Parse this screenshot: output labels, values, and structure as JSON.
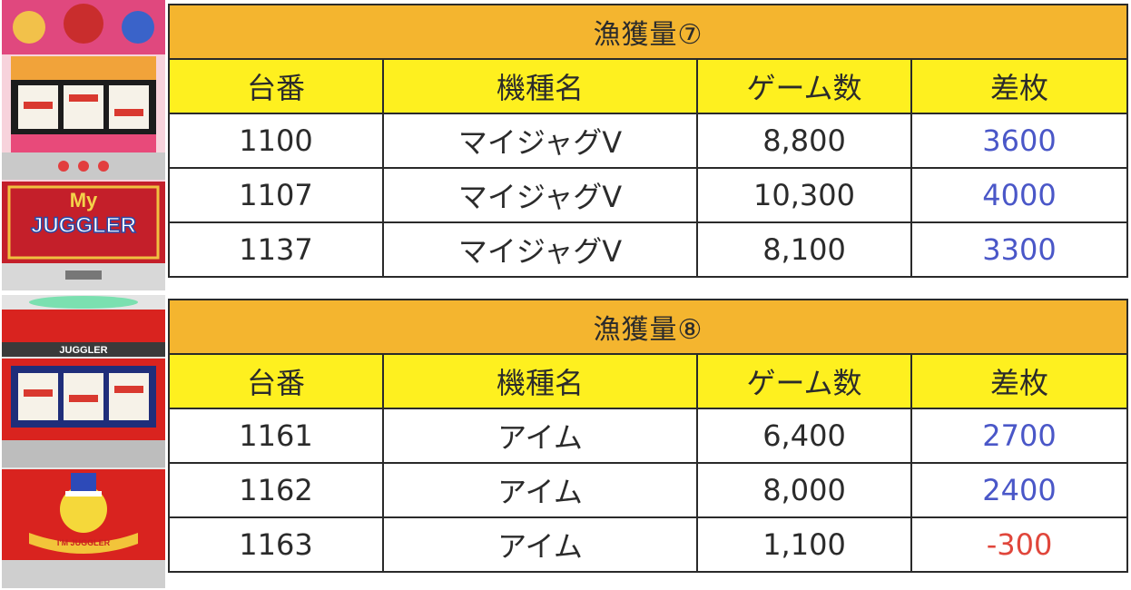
{
  "columns": [
    "台番",
    "機種名",
    "ゲーム数",
    "差枚"
  ],
  "machines": [
    {
      "logo_text": "My",
      "logo_text2": "JUGGLER"
    },
    {
      "banner_text": "JUGGLER",
      "logo_text": "I'M JUGGLER"
    }
  ],
  "tables": [
    {
      "title": "漁獲量⑦",
      "rows": [
        {
          "no": "1100",
          "model": "マイジャグV",
          "games": "8,800",
          "diff": "3600"
        },
        {
          "no": "1107",
          "model": "マイジャグV",
          "games": "10,300",
          "diff": "4000"
        },
        {
          "no": "1137",
          "model": "マイジャグV",
          "games": "8,100",
          "diff": "3300"
        }
      ]
    },
    {
      "title": "漁獲量⑧",
      "rows": [
        {
          "no": "1161",
          "model": "アイム",
          "games": "6,400",
          "diff": "2700"
        },
        {
          "no": "1162",
          "model": "アイム",
          "games": "8,000",
          "diff": "2400"
        },
        {
          "no": "1163",
          "model": "アイム",
          "games": "1,100",
          "diff": "-300"
        }
      ]
    }
  ],
  "colors": {
    "title_bg": "#f4b52f",
    "header_bg": "#fef01f",
    "positive": "#4a57c8",
    "negative": "#e0463b"
  }
}
